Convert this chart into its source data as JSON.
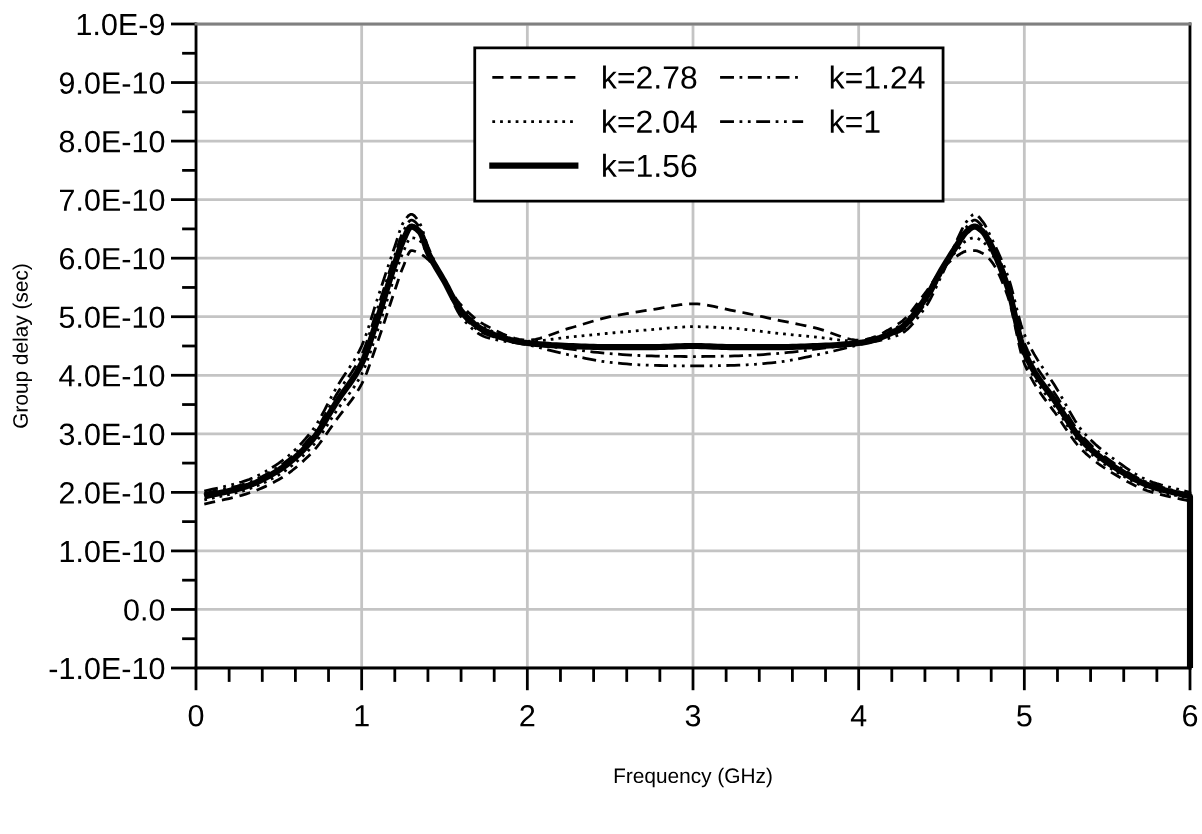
{
  "chart_data": {
    "type": "line",
    "xlabel": "Frequency (GHz)",
    "ylabel": "Group delay (sec)",
    "x": [
      0.05,
      0.3,
      0.5,
      0.7,
      0.85,
      1.0,
      1.1,
      1.2,
      1.25,
      1.3,
      1.35,
      1.4,
      1.5,
      1.6,
      1.75,
      2.0,
      2.25,
      2.5,
      2.75,
      3.0,
      3.25,
      3.5,
      3.75,
      4.0,
      4.25,
      4.4,
      4.5,
      4.6,
      4.65,
      4.7,
      4.75,
      4.8,
      4.9,
      5.0,
      5.2,
      5.35,
      5.55,
      5.75,
      6.0,
      6.0
    ],
    "series": [
      {
        "name": "k=2.78",
        "color": "#000000",
        "line_style": "dashed",
        "values": [
          1.8e-10,
          1.97e-10,
          2.22e-10,
          2.68e-10,
          3.25e-10,
          3.85e-10,
          4.6e-10,
          5.45e-10,
          5.85e-10,
          6.13e-10,
          6.08e-10,
          5.98e-10,
          5.6e-10,
          5.2e-10,
          4.85e-10,
          4.6e-10,
          4.8e-10,
          5e-10,
          5.12e-10,
          5.22e-10,
          5.1e-10,
          4.95e-10,
          4.8e-10,
          4.6e-10,
          4.9e-10,
          5.4e-10,
          5.8e-10,
          6.05e-10,
          6.12e-10,
          6.13e-10,
          6.08e-10,
          5.95e-10,
          5.35e-10,
          4.2e-10,
          3.3e-10,
          2.72e-10,
          2.3e-10,
          2.02e-10,
          1.85e-10,
          -1e-10
        ]
      },
      {
        "name": "k=2.04",
        "color": "#000000",
        "line_style": "dotted",
        "values": [
          1.87e-10,
          2.04e-10,
          2.3e-10,
          2.78e-10,
          3.4e-10,
          4.02e-10,
          4.8e-10,
          5.7e-10,
          6.1e-10,
          6.35e-10,
          6.3e-10,
          6.05e-10,
          5.6e-10,
          5.15e-10,
          4.8e-10,
          4.58e-10,
          4.65e-10,
          4.72e-10,
          4.78e-10,
          4.83e-10,
          4.8e-10,
          4.72e-10,
          4.65e-10,
          4.58e-10,
          4.85e-10,
          5.35e-10,
          5.82e-10,
          6.15e-10,
          6.3e-10,
          6.35e-10,
          6.28e-10,
          6.1e-10,
          5.45e-10,
          4.3e-10,
          3.4e-10,
          2.8e-10,
          2.36e-10,
          2.07e-10,
          1.89e-10,
          -1e-10
        ]
      },
      {
        "name": "k=1.56",
        "color": "#000000",
        "line_style": "solid",
        "values": [
          1.93e-10,
          2.1e-10,
          2.38e-10,
          2.89e-10,
          3.55e-10,
          4.2e-10,
          5e-10,
          5.9e-10,
          6.3e-10,
          6.54e-10,
          6.45e-10,
          6.1e-10,
          5.6e-10,
          5.1e-10,
          4.75e-10,
          4.55e-10,
          4.5e-10,
          4.48e-10,
          4.48e-10,
          4.5e-10,
          4.48e-10,
          4.48e-10,
          4.5e-10,
          4.55e-10,
          4.8e-10,
          5.3e-10,
          5.8e-10,
          6.25e-10,
          6.45e-10,
          6.54e-10,
          6.45e-10,
          6.2e-10,
          5.5e-10,
          4.4e-10,
          3.5e-10,
          2.88e-10,
          2.42e-10,
          2.12e-10,
          1.93e-10,
          -1e-10
        ]
      },
      {
        "name": "k=1.24",
        "color": "#000000",
        "line_style": "dashdot",
        "values": [
          1.98e-10,
          2.15e-10,
          2.44e-10,
          2.97e-10,
          3.68e-10,
          4.35e-10,
          5.18e-10,
          6.05e-10,
          6.45e-10,
          6.65e-10,
          6.53e-10,
          6.15e-10,
          5.6e-10,
          5.05e-10,
          4.7e-10,
          4.55e-10,
          4.45e-10,
          4.37e-10,
          4.33e-10,
          4.32e-10,
          4.33e-10,
          4.37e-10,
          4.45e-10,
          4.55e-10,
          4.75e-10,
          5.22e-10,
          5.75e-10,
          6.3e-10,
          6.53e-10,
          6.65e-10,
          6.53e-10,
          6.28e-10,
          5.6e-10,
          4.55e-10,
          3.62e-10,
          2.96e-10,
          2.48e-10,
          2.16e-10,
          1.96e-10,
          -1e-10
        ]
      },
      {
        "name": "k=1",
        "color": "#000000",
        "line_style": "dashdotdot",
        "values": [
          2.02e-10,
          2.2e-10,
          2.5e-10,
          3.05e-10,
          3.8e-10,
          4.5e-10,
          5.35e-10,
          6.2e-10,
          6.6e-10,
          6.75e-10,
          6.6e-10,
          6.2e-10,
          5.6e-10,
          5e-10,
          4.65e-10,
          4.52e-10,
          4.35e-10,
          4.22e-10,
          4.17e-10,
          4.16e-10,
          4.17e-10,
          4.22e-10,
          4.35e-10,
          4.52e-10,
          4.7e-10,
          5.15e-10,
          5.7e-10,
          6.35e-10,
          6.62e-10,
          6.75e-10,
          6.62e-10,
          6.35e-10,
          5.7e-10,
          4.7e-10,
          3.75e-10,
          3.05e-10,
          2.55e-10,
          2.2e-10,
          2e-10,
          -1e-10
        ]
      }
    ],
    "xlim": [
      0,
      6
    ],
    "xticks": [
      0,
      {
        "value": 0.2,
        "label": null
      },
      {
        "value": 0.4,
        "label": null
      },
      {
        "value": 0.6,
        "label": null
      },
      {
        "value": 0.8,
        "label": null
      },
      1,
      {
        "value": 1.2,
        "label": null
      },
      {
        "value": 1.4,
        "label": null
      },
      {
        "value": 1.6,
        "label": null
      },
      {
        "value": 1.8,
        "label": null
      },
      2,
      {
        "value": 2.2,
        "label": null
      },
      {
        "value": 2.4,
        "label": null
      },
      {
        "value": 2.6,
        "label": null
      },
      {
        "value": 2.8,
        "label": null
      },
      3,
      {
        "value": 3.2,
        "label": null
      },
      {
        "value": 3.4,
        "label": null
      },
      {
        "value": 3.6,
        "label": null
      },
      {
        "value": 3.8,
        "label": null
      },
      4,
      {
        "value": 4.2,
        "label": null
      },
      {
        "value": 4.4,
        "label": null
      },
      {
        "value": 4.6,
        "label": null
      },
      {
        "value": 4.8,
        "label": null
      },
      5,
      {
        "value": 5.2,
        "label": null
      },
      {
        "value": 5.4,
        "label": null
      },
      {
        "value": 5.6,
        "label": null
      },
      {
        "value": 5.8,
        "label": null
      },
      6
    ],
    "ylim": [
      -1e-10,
      1e-09
    ],
    "yticks": [
      {
        "value": -1e-10,
        "label": "-1.0E-10"
      },
      {
        "value": -5e-11,
        "label": null
      },
      {
        "value": 0,
        "label": "0.0"
      },
      {
        "value": 5e-11,
        "label": null
      },
      {
        "value": 1e-10,
        "label": "1.0E-10"
      },
      {
        "value": 1.5e-10,
        "label": null
      },
      {
        "value": 2e-10,
        "label": "2.0E-10"
      },
      {
        "value": 2.5e-10,
        "label": null
      },
      {
        "value": 3e-10,
        "label": "3.0E-10"
      },
      {
        "value": 3.5e-10,
        "label": null
      },
      {
        "value": 4e-10,
        "label": "4.0E-10"
      },
      {
        "value": 4.5e-10,
        "label": null
      },
      {
        "value": 5e-10,
        "label": "5.0E-10"
      },
      {
        "value": 5.5e-10,
        "label": null
      },
      {
        "value": 6e-10,
        "label": "6.0E-10"
      },
      {
        "value": 6.5e-10,
        "label": null
      },
      {
        "value": 7e-10,
        "label": "7.0E-10"
      },
      {
        "value": 7.5e-10,
        "label": null
      },
      {
        "value": 8e-10,
        "label": "8.0E-10"
      },
      {
        "value": 8.5e-10,
        "label": null
      },
      {
        "value": 9e-10,
        "label": "9.0E-10"
      },
      {
        "value": 9.5e-10,
        "label": null
      },
      {
        "value": 1e-09,
        "label": "1.0E-9"
      }
    ],
    "grid": true,
    "legend": "top"
  }
}
